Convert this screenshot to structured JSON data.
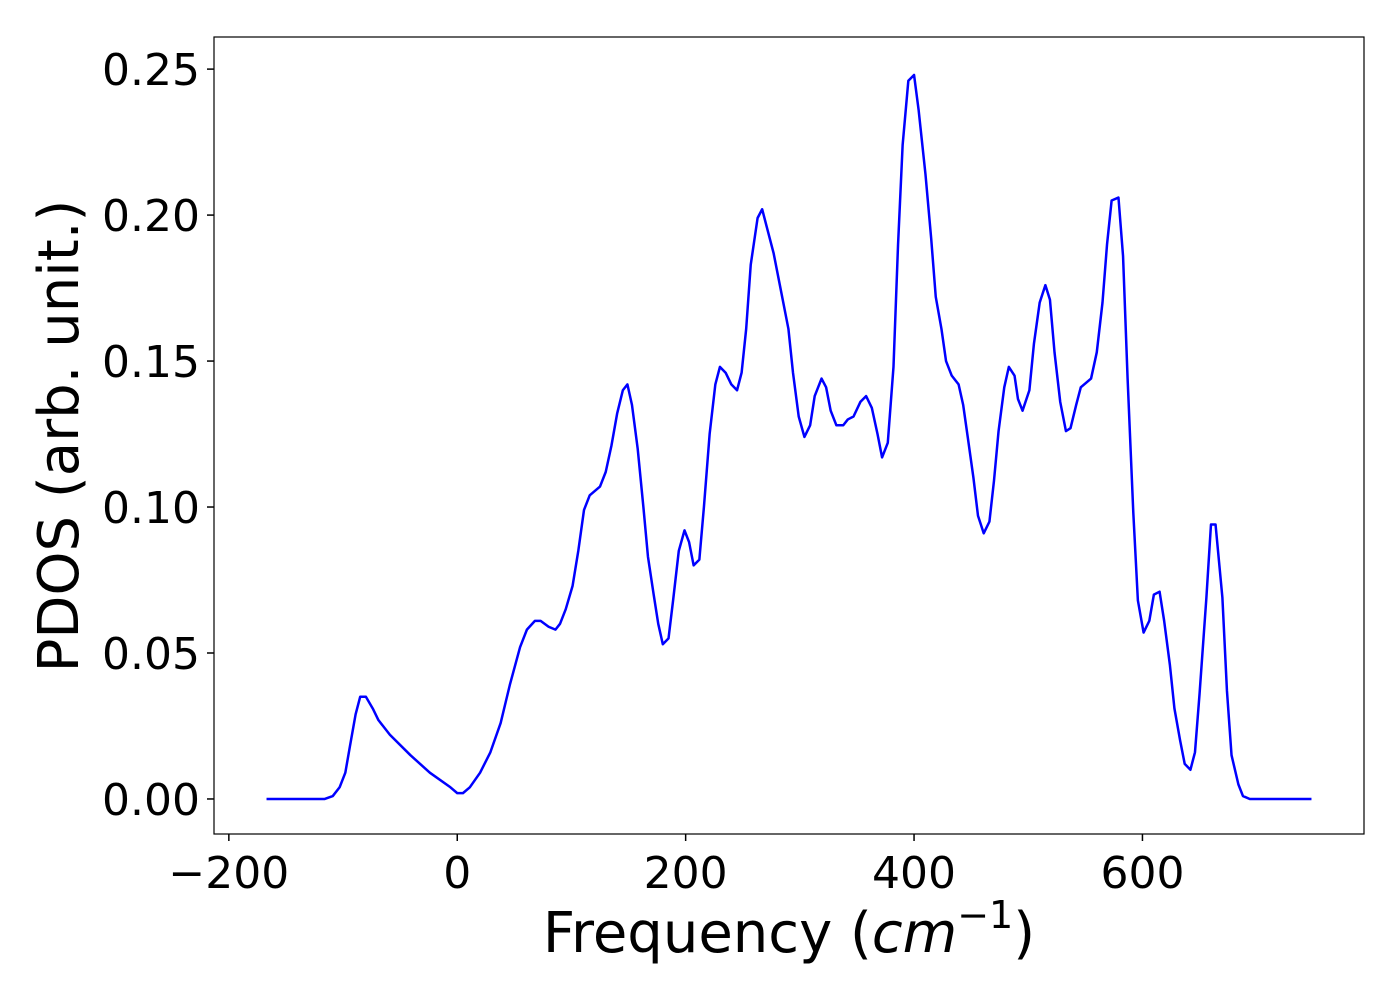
{
  "chart_data": {
    "type": "line",
    "xlabel": {
      "prefix": "Frequency (",
      "unit": "cm",
      "exp": "−1",
      "suffix": ")"
    },
    "ylabel": "PDOS (arb. unit.)",
    "xlim": [
      -213,
      794
    ],
    "ylim": [
      -0.012,
      0.261
    ],
    "xticks": [
      {
        "value": -200,
        "label": "−200"
      },
      0,
      200,
      400,
      600
    ],
    "yticks": [
      {
        "value": 0,
        "label": "0.00"
      },
      {
        "value": 0.05,
        "label": "0.05"
      },
      {
        "value": 0.1,
        "label": "0.10"
      },
      {
        "value": 0.15,
        "label": "0.15"
      },
      {
        "value": 0.2,
        "label": "0.20"
      },
      {
        "value": 0.25,
        "label": "0.25"
      }
    ],
    "x": [
      -167,
      -116,
      -109,
      -103,
      -98,
      -94,
      -89,
      -85,
      -80,
      -74,
      -69,
      -59,
      -41,
      -24,
      -6,
      0,
      5,
      11,
      20,
      29,
      38,
      46,
      55,
      61,
      68,
      73,
      80,
      86,
      90,
      95,
      101,
      106,
      111,
      116,
      125,
      130,
      135,
      140,
      145,
      149,
      153,
      158,
      163,
      167,
      172,
      176,
      180,
      185,
      189,
      194,
      199,
      203,
      207,
      212,
      216,
      221,
      226,
      230,
      235,
      240,
      245,
      249,
      253,
      257,
      263,
      267,
      271,
      277,
      284,
      290,
      294,
      299,
      304,
      309,
      313,
      319,
      323,
      327,
      332,
      338,
      342,
      347,
      353,
      358,
      363,
      368,
      372,
      377,
      382,
      386,
      390,
      395,
      400,
      404,
      410,
      415,
      419,
      424,
      428,
      433,
      439,
      443,
      447,
      452,
      456,
      461,
      466,
      470,
      474,
      479,
      483,
      488,
      491,
      495,
      501,
      505,
      510,
      515,
      519,
      523,
      528,
      533,
      537,
      542,
      546,
      555,
      560,
      565,
      569,
      573,
      579,
      583,
      587,
      592,
      596,
      601,
      606,
      610,
      615,
      619,
      624,
      628,
      633,
      637,
      642,
      646,
      650,
      656,
      660,
      664,
      670,
      674,
      678,
      684,
      688,
      694,
      748
    ],
    "series": [
      {
        "name": "PDOS",
        "color": "#0000ff",
        "values": [
          0,
          0,
          0.001,
          0.004,
          0.009,
          0.018,
          0.029,
          0.035,
          0.035,
          0.031,
          0.027,
          0.022,
          0.015,
          0.009,
          0.004,
          0.002,
          0.002,
          0.004,
          0.009,
          0.016,
          0.026,
          0.039,
          0.052,
          0.058,
          0.061,
          0.061,
          0.059,
          0.058,
          0.06,
          0.065,
          0.073,
          0.085,
          0.099,
          0.104,
          0.107,
          0.112,
          0.121,
          0.132,
          0.14,
          0.142,
          0.135,
          0.12,
          0.1,
          0.083,
          0.07,
          0.06,
          0.053,
          0.055,
          0.068,
          0.085,
          0.092,
          0.088,
          0.08,
          0.082,
          0.1,
          0.125,
          0.142,
          0.148,
          0.146,
          0.142,
          0.14,
          0.146,
          0.161,
          0.183,
          0.199,
          0.202,
          0.196,
          0.187,
          0.173,
          0.161,
          0.146,
          0.131,
          0.124,
          0.128,
          0.138,
          0.144,
          0.141,
          0.133,
          0.128,
          0.128,
          0.13,
          0.131,
          0.136,
          0.138,
          0.134,
          0.125,
          0.117,
          0.122,
          0.148,
          0.19,
          0.224,
          0.246,
          0.248,
          0.236,
          0.214,
          0.192,
          0.172,
          0.161,
          0.15,
          0.145,
          0.142,
          0.135,
          0.124,
          0.11,
          0.097,
          0.091,
          0.095,
          0.109,
          0.126,
          0.141,
          0.148,
          0.145,
          0.137,
          0.133,
          0.14,
          0.156,
          0.17,
          0.176,
          0.171,
          0.153,
          0.136,
          0.126,
          0.127,
          0.135,
          0.141,
          0.144,
          0.153,
          0.17,
          0.19,
          0.205,
          0.206,
          0.186,
          0.144,
          0.098,
          0.068,
          0.057,
          0.061,
          0.07,
          0.071,
          0.061,
          0.046,
          0.031,
          0.02,
          0.012,
          0.01,
          0.016,
          0.036,
          0.069,
          0.094,
          0.094,
          0.069,
          0.037,
          0.015,
          0.005,
          0.001,
          0,
          0
        ]
      }
    ]
  }
}
